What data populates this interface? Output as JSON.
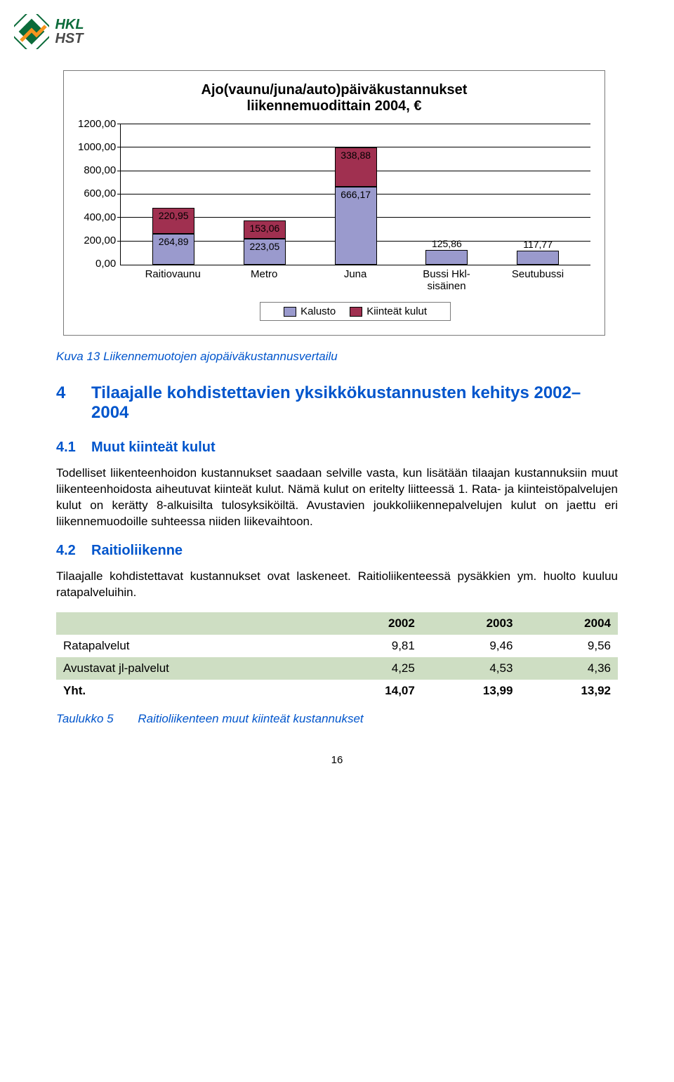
{
  "logo": {
    "top": "HKL",
    "bottom": "HST"
  },
  "chart": {
    "type": "stacked-bar",
    "title_l1": "Ajo(vaunu/juna/auto)päiväkustannukset",
    "title_l2": "liikennemuodittain 2004, €",
    "ymax": 1200,
    "ytick_step": 200,
    "yticks": [
      "1200,00",
      "1000,00",
      "800,00",
      "600,00",
      "400,00",
      "200,00",
      "0,00"
    ],
    "categories": [
      "Raitiovaunu",
      "Metro",
      "Juna",
      "Bussi Hkl-sisäinen",
      "Seutubussi"
    ],
    "series": [
      {
        "name": "Kalusto",
        "color": "#9a9acd",
        "values": [
          264.89,
          223.05,
          666.17,
          125.86,
          117.77
        ],
        "labels": [
          "264,89",
          "223,05",
          "666,17",
          "125,86",
          "117,77"
        ]
      },
      {
        "name": "Kiinteät kulut",
        "color": "#a03050",
        "values": [
          220.95,
          153.06,
          338.88,
          0,
          0
        ],
        "labels": [
          "220,95",
          "153,06",
          "338,88",
          "",
          ""
        ]
      }
    ],
    "legend": [
      "Kalusto",
      "Kiinteät kulut"
    ],
    "legend_colors": [
      "#9a9acd",
      "#a03050"
    ],
    "border_color": "#7a7a7a"
  },
  "fig_caption": "Kuva 13 Liikennemuotojen ajopäiväkustannusvertailu",
  "section4": {
    "num": "4",
    "title": "Tilaajalle kohdistettavien yksikkökustannusten kehitys 2002–2004"
  },
  "section41": {
    "num": "4.1",
    "title": "Muut kiinteät kulut",
    "para": "Todelliset liikenteenhoidon kustannukset saadaan selville vasta, kun lisätään tilaajan kustannuksiin muut liikenteenhoidosta aiheutuvat kiinteät kulut. Nämä kulut on eritelty liitteessä 1. Rata- ja kiinteistöpalvelujen kulut on kerätty 8-alkuisilta tulosyksiköiltä. Avustavien joukkoliikennepalvelujen kulut on jaettu eri liikennemuodoille suhteessa niiden liikevaihtoon."
  },
  "section42": {
    "num": "4.2",
    "title": "Raitioliikenne",
    "para": "Tilaajalle kohdistettavat kustannukset ovat laskeneet. Raitioliikenteessä pysäkkien ym. huolto kuuluu ratapalveluihin."
  },
  "table": {
    "headers": [
      "",
      "2002",
      "2003",
      "2004"
    ],
    "rows": [
      {
        "label": "Ratapalvelut",
        "c": [
          "9,81",
          "9,46",
          "9,56"
        ],
        "shade": false
      },
      {
        "label": "Avustavat jl-palvelut",
        "c": [
          "4,25",
          "4,53",
          "4,36"
        ],
        "shade": true
      },
      {
        "label": "Yht.",
        "c": [
          "14,07",
          "13,99",
          "13,92"
        ],
        "shade": false,
        "bold": true
      }
    ]
  },
  "table_caption": {
    "label": "Taulukko 5",
    "text": "Raitioliikenteen muut kiinteät kustannukset"
  },
  "page_number": "16"
}
